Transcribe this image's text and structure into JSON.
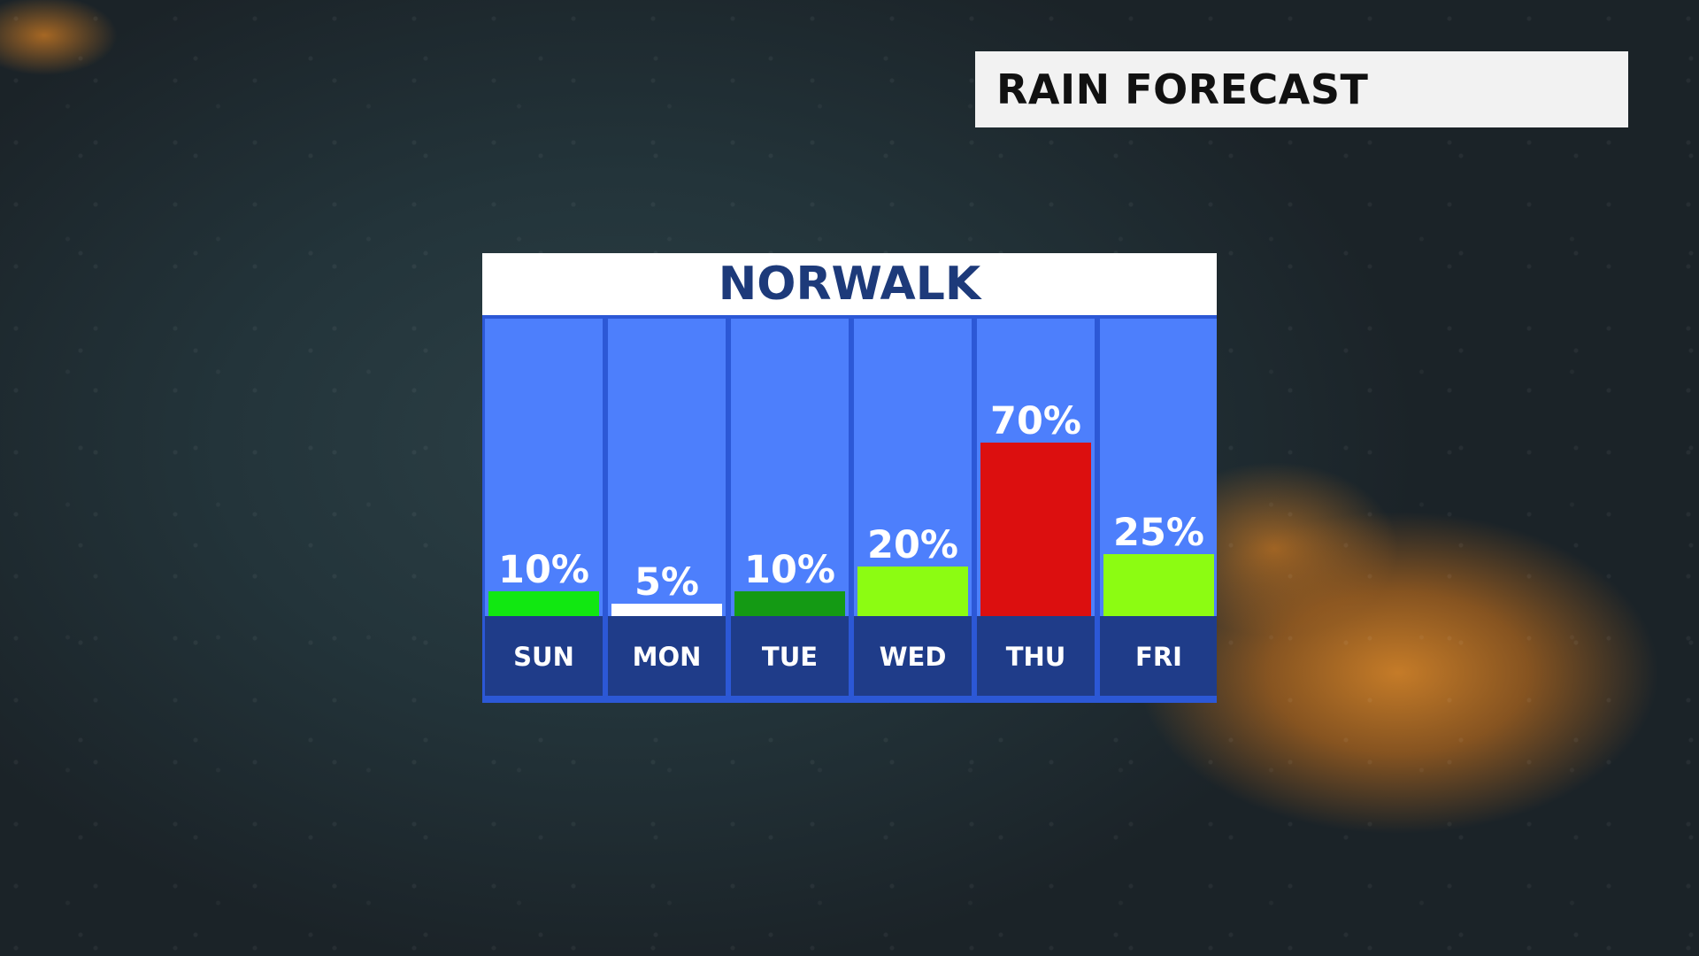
{
  "header": {
    "title": "RAIN FORECAST"
  },
  "location": {
    "name": "NORWALK"
  },
  "colors": {
    "panel_bg": "#2c58d6",
    "column_bg": "#4d7ffc",
    "day_label_bg": "#1f3c89",
    "header_text": "#1d3a7a"
  },
  "chart_data": {
    "type": "bar",
    "title": "NORWALK",
    "categories": [
      "SUN",
      "MON",
      "TUE",
      "WED",
      "THU",
      "FRI"
    ],
    "values": [
      10,
      5,
      10,
      20,
      70,
      25
    ],
    "labels": [
      "10%",
      "5%",
      "10%",
      "20%",
      "70%",
      "25%"
    ],
    "bar_colors": [
      "#11e811",
      "#ffffff",
      "#149a14",
      "#8cfc12",
      "#dc0f0f",
      "#8cfc12"
    ],
    "unit": "%",
    "ylim": [
      0,
      100
    ],
    "grid": false,
    "legend": "none"
  }
}
